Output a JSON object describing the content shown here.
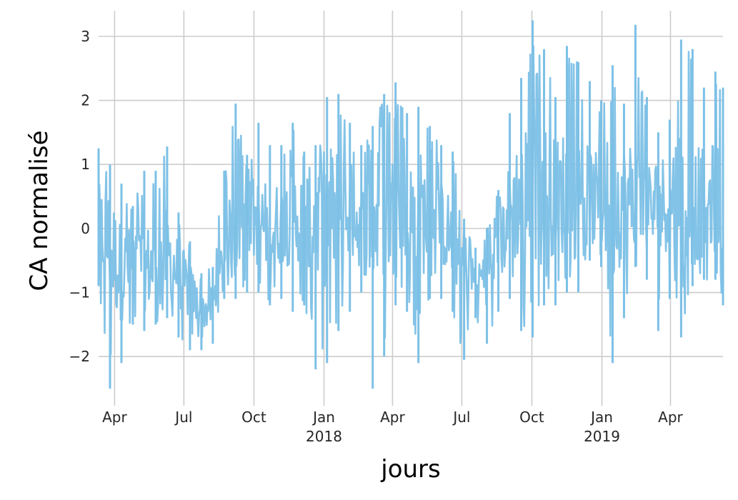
{
  "chart_data": {
    "type": "line",
    "title": "",
    "xlabel": "jours",
    "ylabel": "CA normalisé",
    "x_range": [
      "2017-03-11",
      "2019-06-09"
    ],
    "ylim": [
      -2.7,
      3.4
    ],
    "grid": true,
    "legend": "none",
    "color": "#7cc0e6",
    "grid_color": "#cccccc",
    "y_ticks": [
      {
        "value": 3,
        "label": "3"
      },
      {
        "value": 2,
        "label": "2"
      },
      {
        "value": 1,
        "label": "1"
      },
      {
        "value": 0,
        "label": "0"
      },
      {
        "value": -1,
        "label": "−1"
      },
      {
        "value": -2,
        "label": "−2"
      }
    ],
    "x_ticks": [
      {
        "date": "2017-04-01",
        "label": "Apr",
        "sublabel": ""
      },
      {
        "date": "2017-07-01",
        "label": "Jul",
        "sublabel": ""
      },
      {
        "date": "2017-10-01",
        "label": "Oct",
        "sublabel": ""
      },
      {
        "date": "2018-01-01",
        "label": "Jan",
        "sublabel": "2018"
      },
      {
        "date": "2018-04-01",
        "label": "Apr",
        "sublabel": ""
      },
      {
        "date": "2018-07-01",
        "label": "Jul",
        "sublabel": ""
      },
      {
        "date": "2018-10-01",
        "label": "Oct",
        "sublabel": ""
      },
      {
        "date": "2019-01-01",
        "label": "Jan",
        "sublabel": "2019"
      },
      {
        "date": "2019-04-01",
        "label": "Apr",
        "sublabel": ""
      }
    ],
    "series": [
      {
        "name": "",
        "x": [
          "2017-03-11",
          "2017-03-26",
          "2017-04-10",
          "2017-04-25",
          "2017-05-10",
          "2017-05-25",
          "2017-06-09",
          "2017-06-24",
          "2017-07-09",
          "2017-07-24",
          "2017-08-08",
          "2017-08-23",
          "2017-09-07",
          "2017-09-22",
          "2017-10-07",
          "2017-10-22",
          "2017-11-06",
          "2017-11-21",
          "2017-12-06",
          "2017-12-21",
          "2018-01-05",
          "2018-01-20",
          "2018-02-04",
          "2018-02-19",
          "2018-03-06",
          "2018-03-21",
          "2018-04-05",
          "2018-04-20",
          "2018-05-05",
          "2018-05-20",
          "2018-06-04",
          "2018-06-19",
          "2018-07-04",
          "2018-07-19",
          "2018-08-03",
          "2018-08-18",
          "2018-09-02",
          "2018-09-17",
          "2018-10-02",
          "2018-10-17",
          "2018-11-01",
          "2018-11-16",
          "2018-12-01",
          "2018-12-16",
          "2018-12-31",
          "2019-01-15",
          "2019-01-30",
          "2019-02-14",
          "2019-03-01",
          "2019-03-16",
          "2019-03-31",
          "2019-04-15",
          "2019-04-30",
          "2019-05-15",
          "2019-05-30",
          "2019-06-09"
        ],
        "mean": [
          0.1,
          -0.3,
          -0.7,
          -0.5,
          -0.6,
          -0.6,
          -0.4,
          -0.7,
          -1.0,
          -1.3,
          -1.2,
          -0.5,
          0.1,
          0.2,
          0.1,
          0.0,
          0.1,
          0.2,
          0.2,
          0.1,
          0.2,
          0.3,
          0.3,
          0.0,
          0.1,
          0.3,
          0.2,
          0.1,
          0.2,
          0.2,
          0.1,
          -0.2,
          -0.6,
          -0.8,
          -0.7,
          -0.4,
          0.3,
          0.5,
          0.6,
          0.6,
          0.5,
          0.6,
          0.5,
          0.5,
          0.4,
          0.4,
          0.5,
          0.4,
          0.3,
          0.3,
          0.5,
          0.5,
          0.4,
          0.4,
          0.5,
          0.4
        ],
        "max": [
          1.25,
          1.0,
          0.7,
          0.35,
          0.9,
          0.9,
          1.28,
          0.25,
          -0.2,
          -0.7,
          -0.6,
          0.9,
          1.95,
          1.15,
          1.65,
          1.3,
          1.3,
          1.65,
          1.2,
          1.3,
          2.05,
          2.1,
          1.65,
          1.3,
          1.6,
          2.1,
          2.28,
          1.8,
          1.9,
          1.6,
          1.3,
          1.2,
          0.15,
          -0.3,
          0.0,
          0.6,
          1.8,
          2.35,
          3.25,
          2.8,
          2.05,
          2.85,
          2.6,
          2.3,
          2.0,
          2.55,
          1.95,
          3.18,
          2.05,
          1.5,
          1.7,
          2.95,
          2.8,
          2.2,
          2.45,
          2.2
        ],
        "min": [
          -0.9,
          -2.5,
          -2.1,
          -1.5,
          -1.6,
          -1.5,
          -1.4,
          -1.7,
          -1.9,
          -1.9,
          -1.8,
          -1.1,
          -1.1,
          -1.0,
          -1.0,
          -1.2,
          -1.1,
          -1.3,
          -1.2,
          -2.2,
          -2.1,
          -1.6,
          -1.3,
          -1.0,
          -2.5,
          -2.0,
          -1.2,
          -1.3,
          -2.1,
          -1.1,
          -1.1,
          -1.3,
          -2.05,
          -1.4,
          -1.8,
          -1.3,
          -1.1,
          -1.6,
          -1.7,
          -1.2,
          -1.2,
          -1.0,
          -1.0,
          -0.5,
          -0.6,
          -2.1,
          -1.4,
          -0.6,
          -0.8,
          -1.6,
          -1.1,
          -1.7,
          -0.9,
          -0.8,
          -0.8,
          -1.2
        ]
      }
    ]
  }
}
